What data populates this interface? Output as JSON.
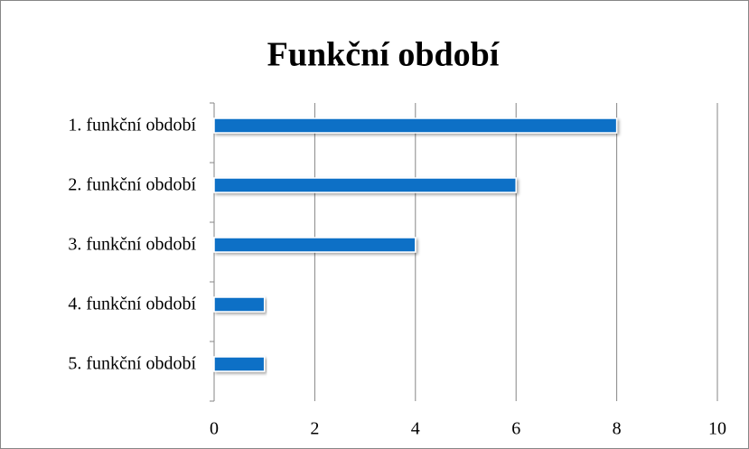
{
  "chart_data": {
    "type": "bar",
    "title": "Funkční období",
    "categories": [
      "1. funkční období",
      "2. funkční období",
      "3. funkční období",
      "4. funkční období",
      "5. funkční období"
    ],
    "values": [
      8,
      6,
      4,
      1,
      1
    ],
    "color": "#0f6fc6",
    "xlim": [
      0,
      10
    ],
    "xticks": [
      0,
      2,
      4,
      6,
      8,
      10
    ],
    "grid": true
  }
}
